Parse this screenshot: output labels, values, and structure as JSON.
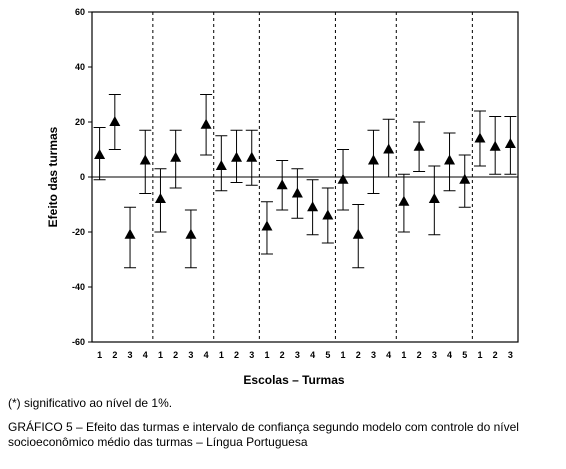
{
  "chart_data": {
    "type": "scatter",
    "title": "",
    "xlabel": "Escolas – Turmas",
    "ylabel": "Efeito das turmas",
    "ylim": [
      -60,
      60
    ],
    "yticks": [
      -60,
      -40,
      -20,
      0,
      20,
      40,
      60
    ],
    "groups": [
      {
        "turmas": [
          "1",
          "2",
          "3",
          "4"
        ],
        "values": [
          8,
          20,
          -21,
          6
        ],
        "lower": [
          -1,
          10,
          -33,
          -6
        ],
        "upper": [
          18,
          30,
          -11,
          17
        ]
      },
      {
        "turmas": [
          "1",
          "2",
          "3",
          "4"
        ],
        "values": [
          -8,
          7,
          -21,
          19
        ],
        "lower": [
          -20,
          -4,
          -33,
          8
        ],
        "upper": [
          3,
          17,
          -12,
          30
        ]
      },
      {
        "turmas": [
          "1",
          "2",
          "3"
        ],
        "values": [
          4,
          7,
          7
        ],
        "lower": [
          -5,
          -2,
          -3
        ],
        "upper": [
          15,
          17,
          17
        ]
      },
      {
        "turmas": [
          "1",
          "2",
          "3",
          "4",
          "5"
        ],
        "values": [
          -18,
          -3,
          -6,
          -11,
          -14
        ],
        "lower": [
          -28,
          -12,
          -15,
          -21,
          -24
        ],
        "upper": [
          -9,
          6,
          3,
          -1,
          -4
        ]
      },
      {
        "turmas": [
          "1",
          "2",
          "3",
          "4"
        ],
        "values": [
          -1,
          -21,
          6,
          10
        ],
        "lower": [
          -12,
          -33,
          -6,
          0
        ],
        "upper": [
          10,
          -10,
          17,
          21
        ]
      },
      {
        "turmas": [
          "1",
          "2",
          "3",
          "4",
          "5"
        ],
        "values": [
          -9,
          11,
          -8,
          6,
          -1
        ],
        "lower": [
          -20,
          2,
          -21,
          -5,
          -11
        ],
        "upper": [
          1,
          20,
          4,
          16,
          8
        ]
      },
      {
        "turmas": [
          "1",
          "2",
          "3"
        ],
        "values": [
          14,
          11,
          12
        ],
        "lower": [
          4,
          1,
          1
        ],
        "upper": [
          24,
          22,
          22
        ]
      }
    ]
  },
  "footnote": "(*) significativo ao nível de 1%.",
  "caption": "GRÁFICO 5 – Efeito das turmas e intervalo de confiança segundo modelo com controle do nível socioeconômico médio das turmas – Língua Portuguesa"
}
